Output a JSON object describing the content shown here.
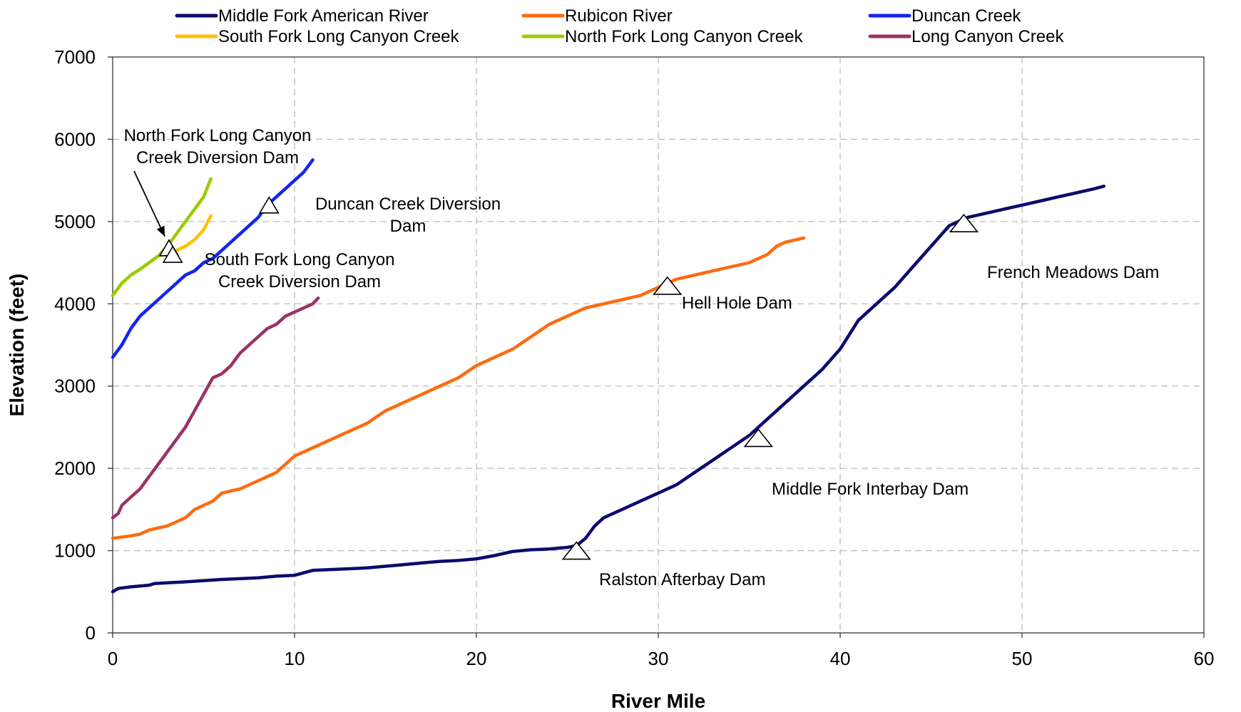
{
  "chart_data": {
    "type": "line",
    "xlabel": "River Mile",
    "ylabel": "Elevation (feet)",
    "xlim": [
      0,
      60
    ],
    "ylim": [
      0,
      7000
    ],
    "xticks": [
      0,
      10,
      20,
      30,
      40,
      50,
      60
    ],
    "yticks": [
      0,
      1000,
      2000,
      3000,
      4000,
      5000,
      6000,
      7000
    ],
    "grid": true,
    "legend_position": "top",
    "series": [
      {
        "name": "Middle Fork American River",
        "color": "#0b0b6e",
        "x": [
          0,
          0.3,
          1,
          2,
          2.3,
          4,
          6,
          8,
          9,
          10,
          10.5,
          11,
          12,
          13,
          14,
          15,
          16,
          17,
          18,
          19,
          20,
          21,
          22,
          23,
          24,
          25,
          25.5,
          26,
          26.5,
          27,
          28,
          29,
          30,
          31,
          32,
          33,
          34,
          35,
          36,
          37,
          38,
          39,
          40,
          41,
          42,
          43,
          44,
          45,
          46,
          47,
          48,
          49,
          50,
          51,
          52,
          53,
          54,
          54.5
        ],
        "y": [
          500,
          540,
          560,
          580,
          600,
          620,
          650,
          670,
          690,
          700,
          730,
          760,
          770,
          780,
          790,
          810,
          830,
          850,
          870,
          880,
          900,
          940,
          990,
          1010,
          1020,
          1040,
          1060,
          1150,
          1300,
          1400,
          1500,
          1600,
          1700,
          1800,
          1950,
          2100,
          2250,
          2400,
          2600,
          2800,
          3000,
          3200,
          3450,
          3800,
          4000,
          4200,
          4450,
          4700,
          4950,
          5050,
          5100,
          5150,
          5200,
          5250,
          5300,
          5350,
          5400,
          5430
        ]
      },
      {
        "name": "Rubicon River",
        "color": "#ff6a10",
        "x": [
          0,
          1,
          1.5,
          2,
          3,
          3.5,
          4,
          4.5,
          5,
          5.5,
          6,
          7,
          8,
          9,
          10,
          11,
          12,
          13,
          14,
          15,
          16,
          17,
          18,
          19,
          20,
          21,
          22,
          23,
          24,
          25,
          26,
          27,
          28,
          29,
          30,
          31,
          32,
          33,
          34,
          35,
          36,
          36.5,
          37,
          38
        ],
        "y": [
          1150,
          1180,
          1200,
          1250,
          1300,
          1350,
          1400,
          1500,
          1550,
          1600,
          1700,
          1750,
          1850,
          1950,
          2150,
          2250,
          2350,
          2450,
          2550,
          2700,
          2800,
          2900,
          3000,
          3100,
          3250,
          3350,
          3450,
          3600,
          3750,
          3850,
          3950,
          4000,
          4050,
          4100,
          4200,
          4300,
          4350,
          4400,
          4450,
          4500,
          4600,
          4700,
          4750,
          4800
        ]
      },
      {
        "name": "Duncan Creek",
        "color": "#1424f0",
        "x": [
          0,
          0.5,
          1,
          1.5,
          2,
          2.5,
          3,
          3.5,
          4,
          4.5,
          5,
          5.5,
          6,
          6.5,
          7,
          7.5,
          8,
          8.5,
          9,
          9.5,
          10,
          10.5,
          11
        ],
        "y": [
          3350,
          3500,
          3700,
          3850,
          3950,
          4050,
          4150,
          4250,
          4350,
          4400,
          4500,
          4550,
          4650,
          4750,
          4850,
          4950,
          5050,
          5200,
          5300,
          5400,
          5500,
          5600,
          5750
        ]
      },
      {
        "name": "South Fork Long Canyon Creek",
        "color": "#ffc000",
        "x": [
          0,
          0.5,
          1,
          1.5,
          2,
          2.5,
          3,
          3.5,
          4,
          4.5,
          5,
          5.4
        ],
        "y": [
          4100,
          4250,
          4350,
          4420,
          4500,
          4580,
          4620,
          4650,
          4700,
          4780,
          4900,
          5070
        ]
      },
      {
        "name": "North Fork Long Canyon Creek",
        "color": "#99cc00",
        "x": [
          0,
          0.5,
          1,
          1.5,
          2,
          2.5,
          3,
          3.5,
          4,
          4.5,
          5,
          5.4
        ],
        "y": [
          4100,
          4250,
          4350,
          4420,
          4500,
          4580,
          4700,
          4850,
          5000,
          5150,
          5300,
          5520
        ]
      },
      {
        "name": "Long Canyon Creek",
        "color": "#993366",
        "x": [
          0,
          0.3,
          0.5,
          1,
          1.5,
          2,
          2.5,
          3,
          3.5,
          4,
          4.5,
          5,
          5.5,
          6,
          6.5,
          7,
          7.5,
          8,
          8.5,
          9,
          9.5,
          10,
          10.5,
          11,
          11.3
        ],
        "y": [
          1400,
          1450,
          1550,
          1650,
          1750,
          1900,
          2050,
          2200,
          2350,
          2500,
          2700,
          2900,
          3100,
          3150,
          3250,
          3400,
          3500,
          3600,
          3700,
          3750,
          3850,
          3900,
          3950,
          4000,
          4070
        ]
      }
    ],
    "annotations": [
      {
        "label_lines": [
          "North Fork Long Canyon",
          "Creek Diversion Dam"
        ],
        "x": 3.1,
        "y": 4680,
        "arrow": true
      },
      {
        "label_lines": [
          "South Fork Long Canyon",
          "Creek Diversion Dam"
        ],
        "x": 3.3,
        "y": 4600
      },
      {
        "label_lines": [
          "Duncan Creek Diversion",
          "Dam"
        ],
        "x": 8.6,
        "y": 5200
      },
      {
        "label_lines": [
          "Hell Hole Dam"
        ],
        "x": 30.5,
        "y": 4220
      },
      {
        "label_lines": [
          "French Meadows  Dam"
        ],
        "x": 46.8,
        "y": 4980
      },
      {
        "label_lines": [
          "Middle Fork Interbay Dam"
        ],
        "x": 35.5,
        "y": 2370
      },
      {
        "label_lines": [
          "Ralston Afterbay Dam"
        ],
        "x": 25.5,
        "y": 1000
      }
    ]
  }
}
